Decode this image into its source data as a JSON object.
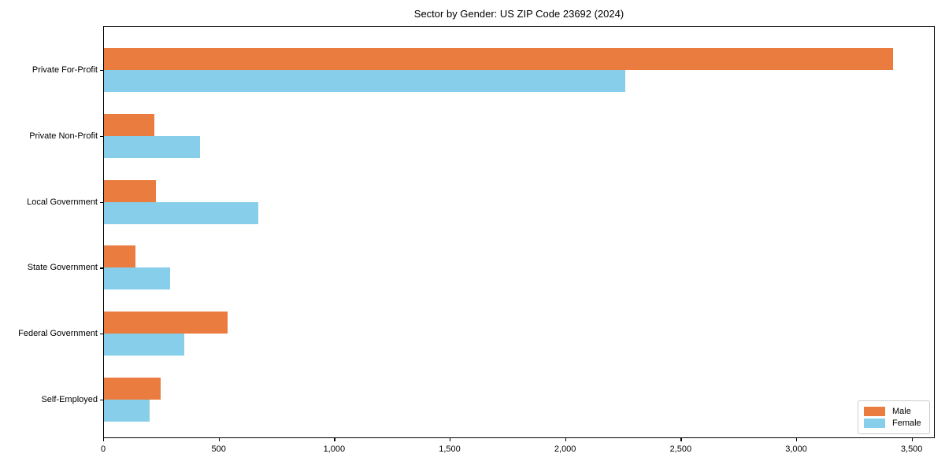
{
  "title": "Sector by Gender: US ZIP Code 23692 (2024)",
  "legend": {
    "items": [
      {
        "label": "Male",
        "color": "#E97C3E"
      },
      {
        "label": "Female",
        "color": "#87CEEB"
      }
    ]
  },
  "chart_data": {
    "type": "bar",
    "orientation": "horizontal",
    "title": "Sector by Gender: US ZIP Code 23692 (2024)",
    "categories": [
      "Private For-Profit",
      "Private Non-Profit",
      "Local Government",
      "State Government",
      "Federal Government",
      "Self-Employed"
    ],
    "series": [
      {
        "name": "Male",
        "color": "#E97C3E",
        "values": [
          3420,
          220,
          230,
          140,
          540,
          250
        ]
      },
      {
        "name": "Female",
        "color": "#87CEEB",
        "values": [
          2260,
          420,
          670,
          290,
          350,
          200
        ]
      }
    ],
    "xlabel": "",
    "ylabel": "",
    "xlim": [
      0,
      3600
    ],
    "x_ticks": [
      0,
      500,
      1000,
      1500,
      2000,
      2500,
      3000,
      3500
    ],
    "x_tick_labels": [
      "0",
      "500",
      "1,000",
      "1,500",
      "2,000",
      "2,500",
      "3,000",
      "3,500"
    ],
    "grid": false,
    "legend_position": "lower right"
  }
}
